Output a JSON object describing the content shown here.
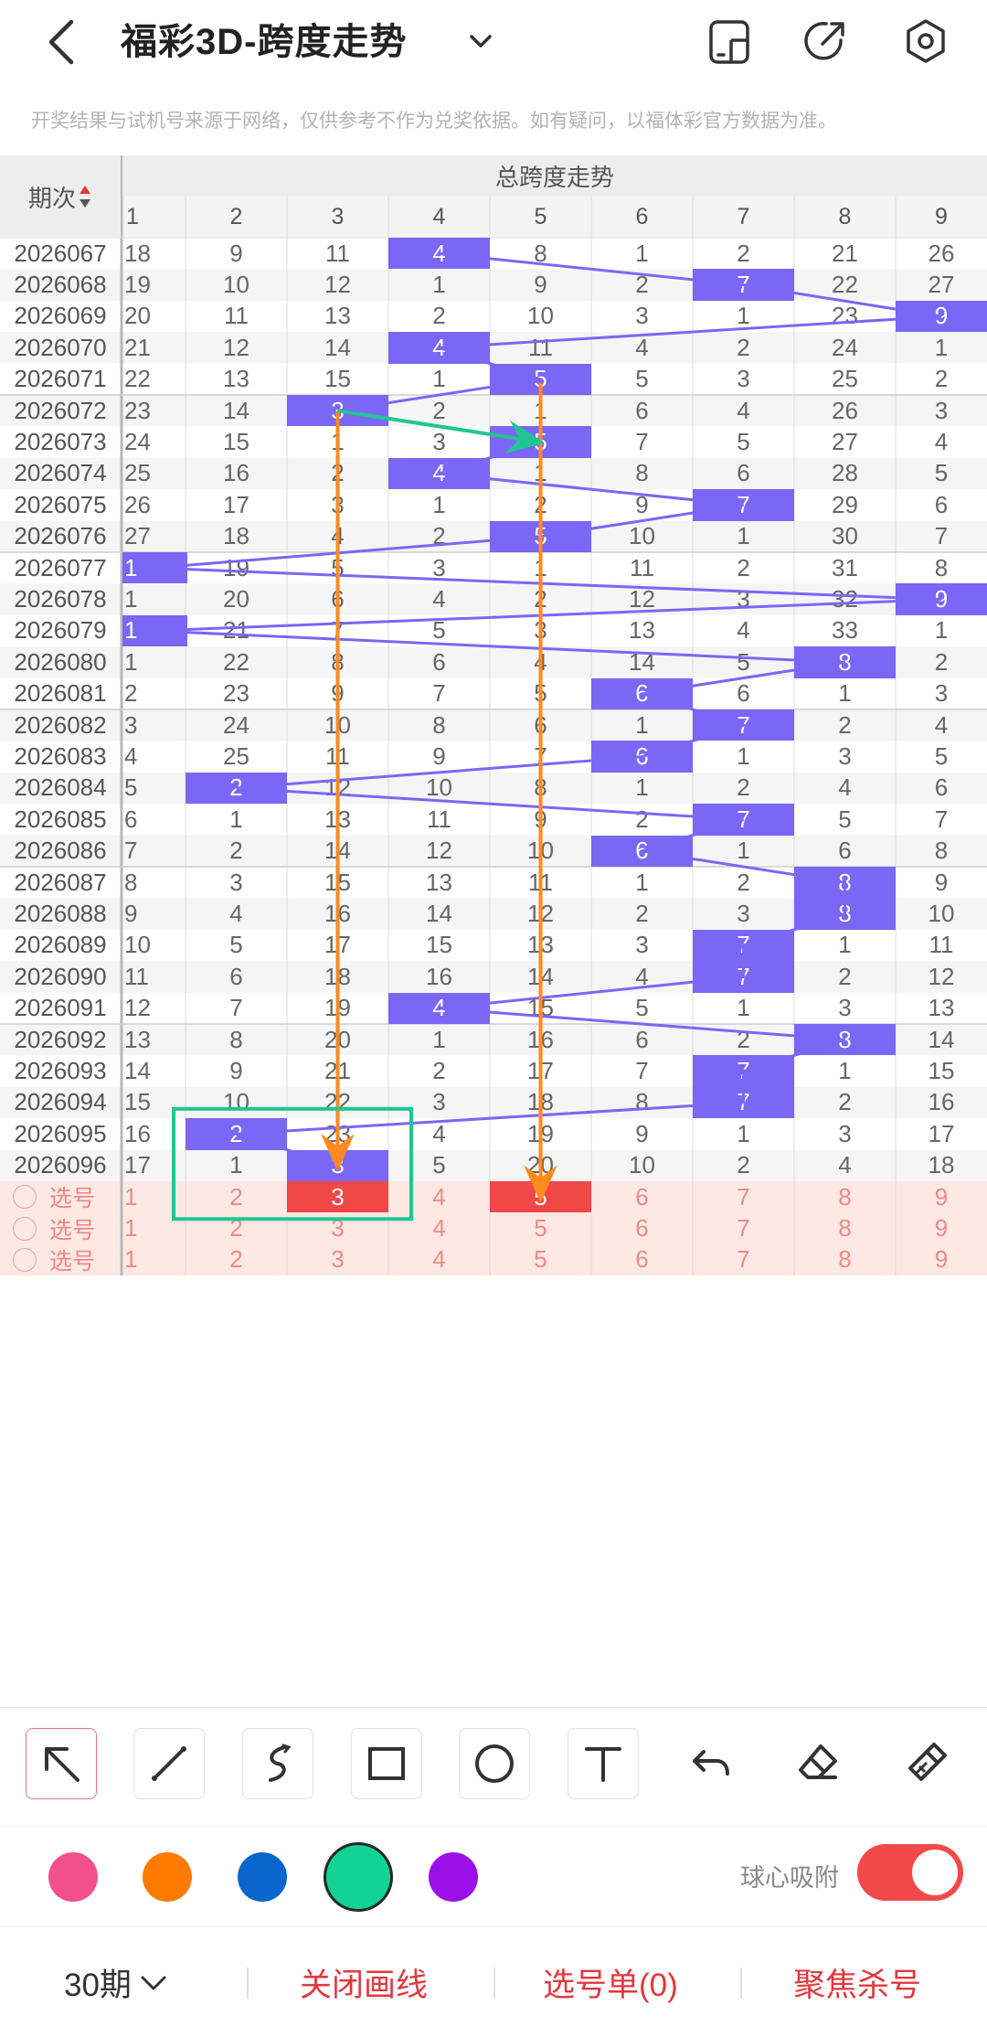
{
  "header": {
    "title": "福彩3D-跨度走势",
    "icons": [
      "back-icon",
      "chevron-down-icon",
      "phone-layout-icon",
      "share-icon",
      "settings-icon"
    ]
  },
  "notice": "开奖结果与试机号来源于网络，仅供参考不作为兑奖依据。如有疑问，以福体彩官方数据为准。",
  "table": {
    "period_header": "期次",
    "group_header": "总跨度走势",
    "columns": [
      "1",
      "2",
      "3",
      "4",
      "5",
      "6",
      "7",
      "8",
      "9"
    ],
    "rows": [
      {
        "period": "2026067",
        "cells": [
          "18",
          "9",
          "11",
          "4",
          "8",
          "1",
          "2",
          "21",
          "26"
        ],
        "hit": 3
      },
      {
        "period": "2026068",
        "cells": [
          "19",
          "10",
          "12",
          "1",
          "9",
          "2",
          "7",
          "22",
          "27"
        ],
        "hit": 6
      },
      {
        "period": "2026069",
        "cells": [
          "20",
          "11",
          "13",
          "2",
          "10",
          "3",
          "1",
          "23",
          "9"
        ],
        "hit": 8
      },
      {
        "period": "2026070",
        "cells": [
          "21",
          "12",
          "14",
          "4",
          "11",
          "4",
          "2",
          "24",
          "1"
        ],
        "hit": 3
      },
      {
        "period": "2026071",
        "cells": [
          "22",
          "13",
          "15",
          "1",
          "5",
          "5",
          "3",
          "25",
          "2"
        ],
        "hit": 4
      },
      {
        "period": "2026072",
        "cells": [
          "23",
          "14",
          "3",
          "2",
          "1",
          "6",
          "4",
          "26",
          "3"
        ],
        "hit": 2
      },
      {
        "period": "2026073",
        "cells": [
          "24",
          "15",
          "1",
          "3",
          "5",
          "7",
          "5",
          "27",
          "4"
        ],
        "hit": 4
      },
      {
        "period": "2026074",
        "cells": [
          "25",
          "16",
          "2",
          "4",
          "1",
          "8",
          "6",
          "28",
          "5"
        ],
        "hit": 3
      },
      {
        "period": "2026075",
        "cells": [
          "26",
          "17",
          "3",
          "1",
          "2",
          "9",
          "7",
          "29",
          "6"
        ],
        "hit": 6
      },
      {
        "period": "2026076",
        "cells": [
          "27",
          "18",
          "4",
          "2",
          "5",
          "10",
          "1",
          "30",
          "7"
        ],
        "hit": 4
      },
      {
        "period": "2026077",
        "cells": [
          "1",
          "19",
          "5",
          "3",
          "1",
          "11",
          "2",
          "31",
          "8"
        ],
        "hit": 0
      },
      {
        "period": "2026078",
        "cells": [
          "1",
          "20",
          "6",
          "4",
          "2",
          "12",
          "3",
          "32",
          "9"
        ],
        "hit": 8
      },
      {
        "period": "2026079",
        "cells": [
          "1",
          "21",
          "7",
          "5",
          "3",
          "13",
          "4",
          "33",
          "1"
        ],
        "hit": 0
      },
      {
        "period": "2026080",
        "cells": [
          "1",
          "22",
          "8",
          "6",
          "4",
          "14",
          "5",
          "8",
          "2"
        ],
        "hit": 7
      },
      {
        "period": "2026081",
        "cells": [
          "2",
          "23",
          "9",
          "7",
          "5",
          "6",
          "6",
          "1",
          "3"
        ],
        "hit": 5
      },
      {
        "period": "2026082",
        "cells": [
          "3",
          "24",
          "10",
          "8",
          "6",
          "1",
          "7",
          "2",
          "4"
        ],
        "hit": 6
      },
      {
        "period": "2026083",
        "cells": [
          "4",
          "25",
          "11",
          "9",
          "7",
          "6",
          "1",
          "3",
          "5"
        ],
        "hit": 5
      },
      {
        "period": "2026084",
        "cells": [
          "5",
          "2",
          "12",
          "10",
          "8",
          "1",
          "2",
          "4",
          "6"
        ],
        "hit": 1
      },
      {
        "period": "2026085",
        "cells": [
          "6",
          "1",
          "13",
          "11",
          "9",
          "2",
          "7",
          "5",
          "7"
        ],
        "hit": 6
      },
      {
        "period": "2026086",
        "cells": [
          "7",
          "2",
          "14",
          "12",
          "10",
          "6",
          "1",
          "6",
          "8"
        ],
        "hit": 5
      },
      {
        "period": "2026087",
        "cells": [
          "8",
          "3",
          "15",
          "13",
          "11",
          "1",
          "2",
          "8",
          "9"
        ],
        "hit": 7
      },
      {
        "period": "2026088",
        "cells": [
          "9",
          "4",
          "16",
          "14",
          "12",
          "2",
          "3",
          "8",
          "10"
        ],
        "hit": 7
      },
      {
        "period": "2026089",
        "cells": [
          "10",
          "5",
          "17",
          "15",
          "13",
          "3",
          "7",
          "1",
          "11"
        ],
        "hit": 6
      },
      {
        "period": "2026090",
        "cells": [
          "11",
          "6",
          "18",
          "16",
          "14",
          "4",
          "7",
          "2",
          "12"
        ],
        "hit": 6
      },
      {
        "period": "2026091",
        "cells": [
          "12",
          "7",
          "19",
          "4",
          "15",
          "5",
          "1",
          "3",
          "13"
        ],
        "hit": 3
      },
      {
        "period": "2026092",
        "cells": [
          "13",
          "8",
          "20",
          "1",
          "16",
          "6",
          "2",
          "8",
          "14"
        ],
        "hit": 7
      },
      {
        "period": "2026093",
        "cells": [
          "14",
          "9",
          "21",
          "2",
          "17",
          "7",
          "7",
          "1",
          "15"
        ],
        "hit": 6
      },
      {
        "period": "2026094",
        "cells": [
          "15",
          "10",
          "22",
          "3",
          "18",
          "8",
          "7",
          "2",
          "16"
        ],
        "hit": 6
      },
      {
        "period": "2026095",
        "cells": [
          "16",
          "2",
          "23",
          "4",
          "19",
          "9",
          "1",
          "3",
          "17"
        ],
        "hit": 1
      },
      {
        "period": "2026096",
        "cells": [
          "17",
          "1",
          "3",
          "5",
          "20",
          "10",
          "2",
          "4",
          "18"
        ],
        "hit": 2
      }
    ],
    "select_label": "选号",
    "select_rows": [
      {
        "label": "选号",
        "cells": [
          "1",
          "2",
          "3",
          "4",
          "5",
          "6",
          "7",
          "8",
          "9"
        ],
        "picked": [
          2,
          4
        ]
      },
      {
        "label": "选号",
        "cells": [
          "1",
          "2",
          "3",
          "4",
          "5",
          "6",
          "7",
          "8",
          "9"
        ],
        "picked": []
      },
      {
        "label": "选号",
        "cells": [
          "1",
          "2",
          "3",
          "4",
          "5",
          "6",
          "7",
          "8",
          "9"
        ],
        "picked": []
      }
    ]
  },
  "tools": [
    "arrow-tool-icon",
    "line-tool-icon",
    "curve-tool-icon",
    "rectangle-tool-icon",
    "circle-tool-icon",
    "text-tool-icon",
    "undo-icon",
    "eraser-icon",
    "clear-brush-icon"
  ],
  "palette": {
    "colors": [
      "#f24f8c",
      "#ff7a00",
      "#0a66cc",
      "#12d295",
      "#9b10e8"
    ],
    "selected": 3,
    "snap_label": "球心吸附",
    "snap_on": true
  },
  "bottom": {
    "period_select": "30期",
    "close_lines": "关闭画线",
    "pick_list": "选号单(0)",
    "focus_kill": "聚焦杀号"
  },
  "colors": {
    "hit": "#7b66f6",
    "accent_red": "#e0393e",
    "select_bg": "#fde8e3",
    "orange": "#ff8a1e",
    "green": "#1ec792",
    "line": "#7b66f6"
  }
}
